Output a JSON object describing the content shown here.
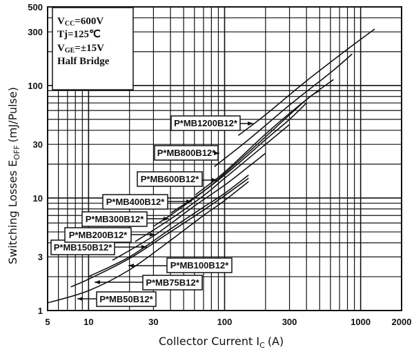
{
  "chart_data": {
    "type": "line",
    "title": "",
    "xlabel": "Collector Current I_C (A)",
    "xlabel_main": "Collector Current I",
    "xlabel_sub": "C",
    "xlabel_unit": "(A)",
    "ylabel_main": "Switching Losses E",
    "ylabel_sub": "OFF",
    "ylabel_unit": "(mJ/Pulse)",
    "x_scale": "log",
    "y_scale": "log",
    "xlim": [
      5,
      2000
    ],
    "ylim": [
      1,
      500
    ],
    "x_ticks": [
      "5",
      "10",
      "30",
      "100",
      "300",
      "1000",
      "2000"
    ],
    "y_ticks": [
      "1",
      "3",
      "10",
      "30",
      "100",
      "300",
      "500"
    ],
    "grid": true,
    "conditions": [
      {
        "main": "V",
        "sub": "CC",
        "rest": "=600V"
      },
      {
        "main": "Tj=125℃",
        "sub": "",
        "rest": ""
      },
      {
        "main": "V",
        "sub": "GE",
        "rest": "=±15V"
      },
      {
        "main": "Half Bridge",
        "sub": "",
        "rest": ""
      }
    ],
    "series": [
      {
        "name": "P*MB50B12*",
        "x": [
          5,
          10,
          20,
          40,
          70,
          100,
          150
        ],
        "y": [
          1.17,
          1.5,
          2.3,
          4.2,
          7,
          9.5,
          14
        ]
      },
      {
        "name": "P*MB75B12*",
        "x": [
          7.4,
          10,
          20,
          40,
          70,
          100,
          150
        ],
        "y": [
          1.62,
          1.9,
          2.9,
          5,
          7.8,
          10.5,
          15
        ]
      },
      {
        "name": "P*MB100B12*",
        "x": [
          10,
          20,
          40,
          70,
          100,
          150
        ],
        "y": [
          2.0,
          3.0,
          5.3,
          8.3,
          11,
          16
        ]
      },
      {
        "name": "P*MB150B12*",
        "x": [
          15,
          30,
          60,
          100,
          150,
          200
        ],
        "y": [
          2.8,
          4.6,
          8.5,
          13,
          19,
          25
        ]
      },
      {
        "name": "P*MB200B12*",
        "x": [
          22,
          40,
          70,
          100,
          200,
          300
        ],
        "y": [
          4.1,
          6.5,
          10.5,
          15,
          30,
          45
        ]
      },
      {
        "name": "P*MB300B12*",
        "x": [
          30,
          50,
          100,
          200,
          300,
          400
        ],
        "y": [
          5.6,
          8.5,
          16,
          33,
          50,
          70
        ]
      },
      {
        "name": "P*MB400B12*",
        "x": [
          40.5,
          70,
          100,
          200,
          400,
          500
        ],
        "y": [
          7.4,
          11.5,
          16.5,
          35,
          75,
          90
        ]
      },
      {
        "name": "P*MB600B12*",
        "x": [
          61,
          100,
          200,
          400,
          632
        ],
        "y": [
          10.7,
          17,
          37,
          75,
          113
        ]
      },
      {
        "name": "P*MB800B12*",
        "x": [
          84,
          150,
          300,
          600,
          867
        ],
        "y": [
          19,
          33,
          67,
          130,
          191
        ]
      },
      {
        "name": "P*MB1200B12*",
        "x": [
          126,
          200,
          400,
          800,
          1270
        ],
        "y": [
          36,
          55,
          110,
          210,
          318
        ]
      }
    ]
  }
}
